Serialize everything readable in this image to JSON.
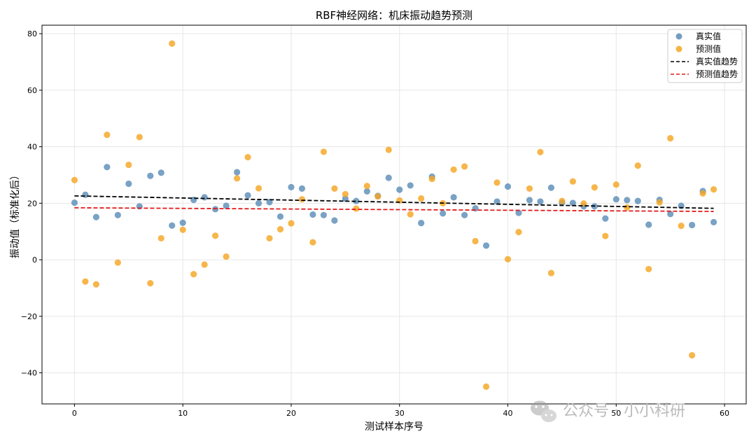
{
  "chart_data": {
    "type": "scatter",
    "title": "RBF神经网络：机床振动趋势预测",
    "xlabel": "测试样本序号",
    "ylabel": "振动值（标准化后）",
    "xlim": [
      -3,
      62
    ],
    "ylim": [
      -51,
      83
    ],
    "xticks": [
      0,
      10,
      20,
      30,
      40,
      50,
      60
    ],
    "yticks": [
      -40,
      -20,
      0,
      20,
      40,
      60,
      80
    ],
    "grid": true,
    "legend_position": "top-right",
    "series": [
      {
        "name": "真实值",
        "kind": "scatter",
        "color": "#5b8db8",
        "x": [
          0,
          1,
          2,
          3,
          4,
          5,
          6,
          7,
          8,
          9,
          10,
          11,
          12,
          13,
          14,
          15,
          16,
          17,
          18,
          19,
          20,
          21,
          22,
          23,
          24,
          25,
          26,
          27,
          28,
          29,
          30,
          31,
          32,
          33,
          34,
          35,
          36,
          37,
          38,
          39,
          40,
          41,
          42,
          43,
          44,
          45,
          46,
          47,
          48,
          49,
          50,
          51,
          52,
          53,
          54,
          55,
          56,
          57,
          58,
          59
        ],
        "y": [
          20.2,
          23.0,
          15.1,
          32.8,
          15.8,
          26.9,
          18.9,
          29.7,
          30.8,
          12.1,
          13.1,
          21.2,
          22.1,
          17.9,
          19.1,
          31.0,
          22.8,
          20.0,
          20.4,
          15.3,
          25.7,
          25.2,
          16.0,
          15.8,
          13.9,
          21.6,
          20.8,
          24.2,
          22.6,
          29.0,
          24.8,
          26.3,
          13.0,
          29.4,
          16.4,
          22.1,
          15.8,
          18.2,
          5.0,
          20.6,
          25.9,
          16.6,
          21.1,
          20.6,
          25.5,
          20.2,
          20.1,
          18.9,
          18.9,
          14.6,
          21.4,
          21.1,
          20.8,
          12.4,
          21.2,
          16.2,
          19.1,
          12.3,
          24.3,
          13.3
        ]
      },
      {
        "name": "预测值",
        "kind": "scatter",
        "color": "#f5a623",
        "x": [
          0,
          1,
          2,
          3,
          4,
          5,
          6,
          7,
          8,
          9,
          10,
          11,
          12,
          13,
          14,
          15,
          16,
          17,
          18,
          19,
          20,
          21,
          22,
          23,
          24,
          25,
          26,
          27,
          28,
          29,
          30,
          31,
          32,
          33,
          34,
          35,
          36,
          37,
          38,
          39,
          40,
          41,
          42,
          43,
          44,
          45,
          46,
          47,
          48,
          49,
          50,
          51,
          52,
          53,
          54,
          55,
          56,
          57,
          58,
          59
        ],
        "y": [
          28.2,
          -7.7,
          -8.7,
          44.2,
          -1.0,
          33.6,
          43.4,
          -8.3,
          7.6,
          76.5,
          10.6,
          -5.1,
          -1.7,
          8.5,
          1.1,
          28.8,
          36.3,
          25.3,
          7.6,
          10.8,
          12.9,
          21.4,
          6.2,
          38.2,
          25.2,
          23.2,
          18.1,
          26.1,
          22.4,
          38.9,
          21.0,
          16.1,
          21.7,
          28.6,
          20.0,
          31.9,
          33.0,
          6.6,
          -44.9,
          27.3,
          0.2,
          9.8,
          25.2,
          38.1,
          -4.7,
          20.8,
          27.7,
          19.9,
          25.6,
          8.4,
          26.6,
          18.5,
          33.3,
          -3.3,
          20.3,
          43.0,
          12.0,
          -33.8,
          23.5,
          24.9
        ]
      },
      {
        "name": "真实值趋势",
        "kind": "line",
        "color": "#000000",
        "dash": "dashed",
        "x": [
          0,
          59
        ],
        "y": [
          22.6,
          18.2
        ]
      },
      {
        "name": "预测值趋势",
        "kind": "line",
        "color": "#e41a1c",
        "dash": "dashed",
        "x": [
          0,
          59
        ],
        "y": [
          18.4,
          17.1
        ]
      }
    ]
  },
  "watermark": {
    "text": "公众号 · 小小科研",
    "icon": "wechat-icon"
  }
}
